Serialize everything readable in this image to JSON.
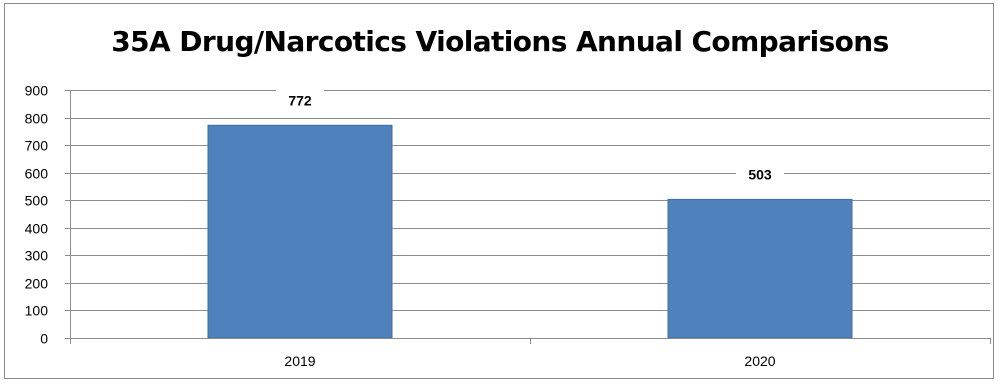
{
  "chart_data": {
    "type": "bar",
    "title": "35A Drug/Narcotics Violations Annual Comparisons",
    "categories": [
      "2019",
      "2020"
    ],
    "values": [
      772,
      503
    ],
    "ylim": [
      0,
      900
    ],
    "ytick_step": 100,
    "grid": true,
    "legend": "none",
    "data_labels": true,
    "bar_color": "#4F81BD",
    "bar_edge_color": "#3E6DA8",
    "grid_color": "#8C8C8C"
  }
}
